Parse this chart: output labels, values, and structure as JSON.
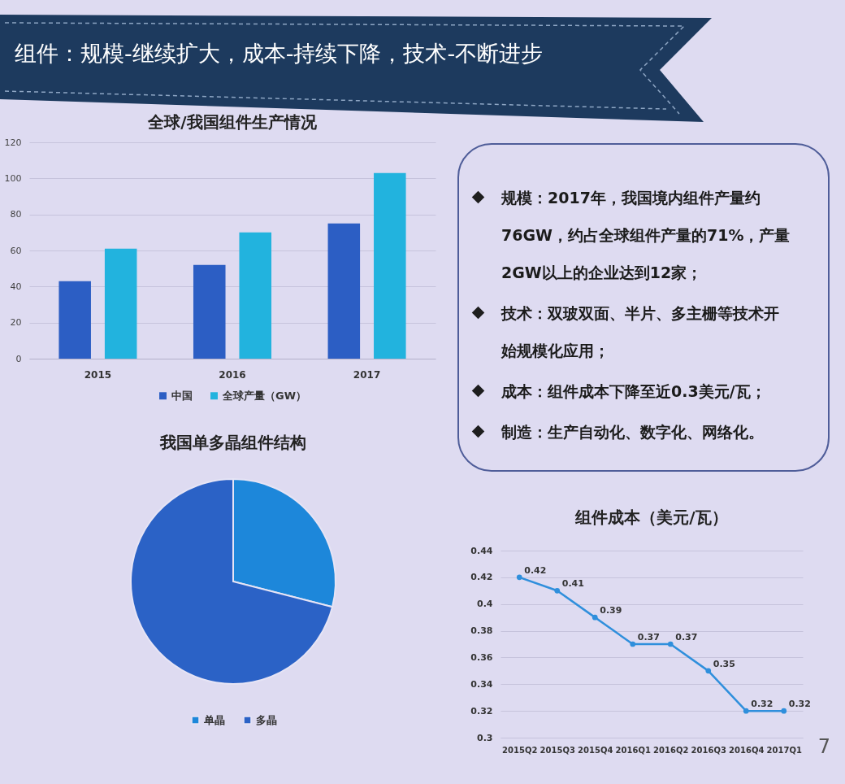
{
  "chart_data": [
    {
      "type": "other",
      "title": "组件：规模-继续扩大，成本-持续下降，技术-不断进步"
    },
    {
      "type": "bar",
      "title": "全球/我国组件生产情况",
      "categories": [
        "2015",
        "2016",
        "2017"
      ],
      "series": [
        {
          "name": "中国",
          "color": "#2c5ec4",
          "values": [
            43,
            52,
            75
          ]
        },
        {
          "name": "全球产量（GW）",
          "color": "#22b3de",
          "values": [
            61,
            70,
            103
          ]
        }
      ],
      "ylim": [
        0,
        120
      ],
      "yticks": [
        0,
        20,
        40,
        60,
        80,
        100,
        120
      ],
      "grid": "y",
      "legend": "bottom"
    },
    {
      "type": "other",
      "annotations": [
        "规模：2017年，我国境内组件产量约76GW，约占全球组件产量的71%，产量2GW以上的企业达到12家；",
        "技术：双玻双面、半片、多主栅等技术开始规模化应用；",
        "成本：组件成本下降至近0.3美元/瓦；",
        "制造：生产自动化、数字化、网络化。"
      ]
    },
    {
      "type": "pie",
      "title": "我国单多晶组件结构",
      "categories": [
        "单晶",
        "多晶"
      ],
      "values": [
        29,
        71
      ],
      "colors": [
        "#1d87da",
        "#2b62c6"
      ],
      "legend": "bottom"
    },
    {
      "type": "line",
      "title": "组件成本（美元/瓦）",
      "categories": [
        "2015Q2",
        "2015Q3",
        "2015Q4",
        "2016Q1",
        "2016Q2",
        "2016Q3",
        "2016Q4",
        "2017Q1"
      ],
      "series": [
        {
          "color": "#2f8fdc",
          "values": [
            0.42,
            0.41,
            0.39,
            0.37,
            0.37,
            0.35,
            0.32,
            0.32
          ]
        }
      ],
      "ylim": [
        0.3,
        0.44
      ],
      "yticks": [
        0.3,
        0.32,
        0.34,
        0.36,
        0.38,
        0.4,
        0.42,
        0.44
      ],
      "grid": "y",
      "data_labels": true,
      "marker": "circle",
      "line_style": "solid",
      "annotations": [
        "7"
      ]
    }
  ]
}
